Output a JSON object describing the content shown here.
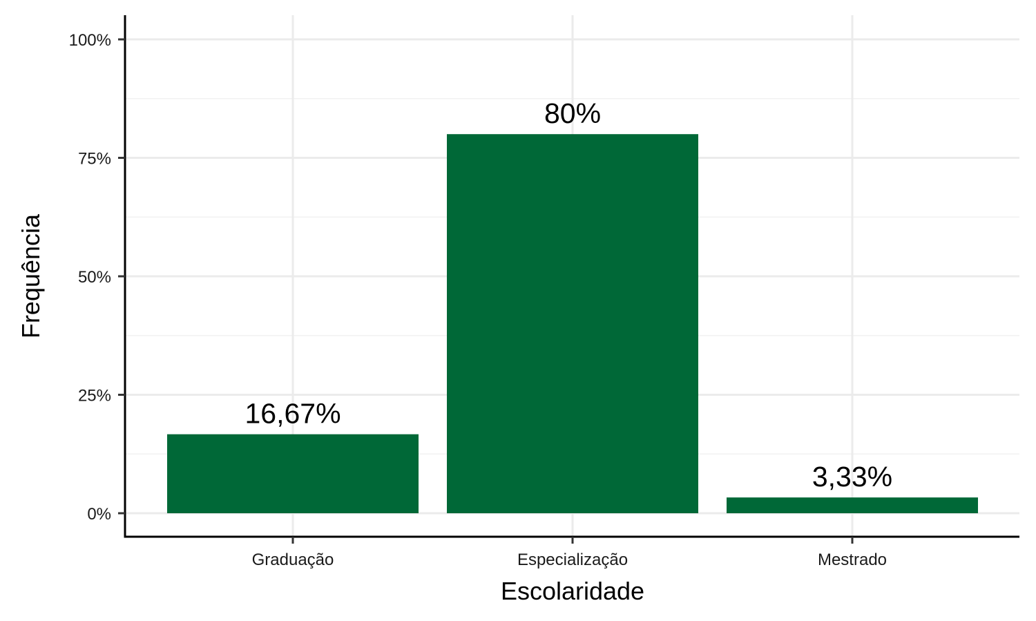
{
  "chart_data": {
    "type": "bar",
    "title": "",
    "xlabel": "Escolaridade",
    "ylabel": "Frequência",
    "categories": [
      "Graduação",
      "Especialização",
      "Mestrado"
    ],
    "values": [
      16.67,
      80,
      3.33
    ],
    "data_labels": [
      "16,67%",
      "80%",
      "3,33%"
    ],
    "ylim": [
      0,
      100
    ],
    "yticks": [
      0,
      25,
      50,
      75,
      100
    ],
    "ytick_labels": [
      "0%",
      "25%",
      "50%",
      "75%",
      "100%"
    ],
    "grid": true,
    "legend": "none",
    "colors": {
      "bar": "#006837",
      "grid_major": "#ebebeb",
      "grid_minor": "#f2f2f2",
      "axis": "#000000"
    }
  }
}
